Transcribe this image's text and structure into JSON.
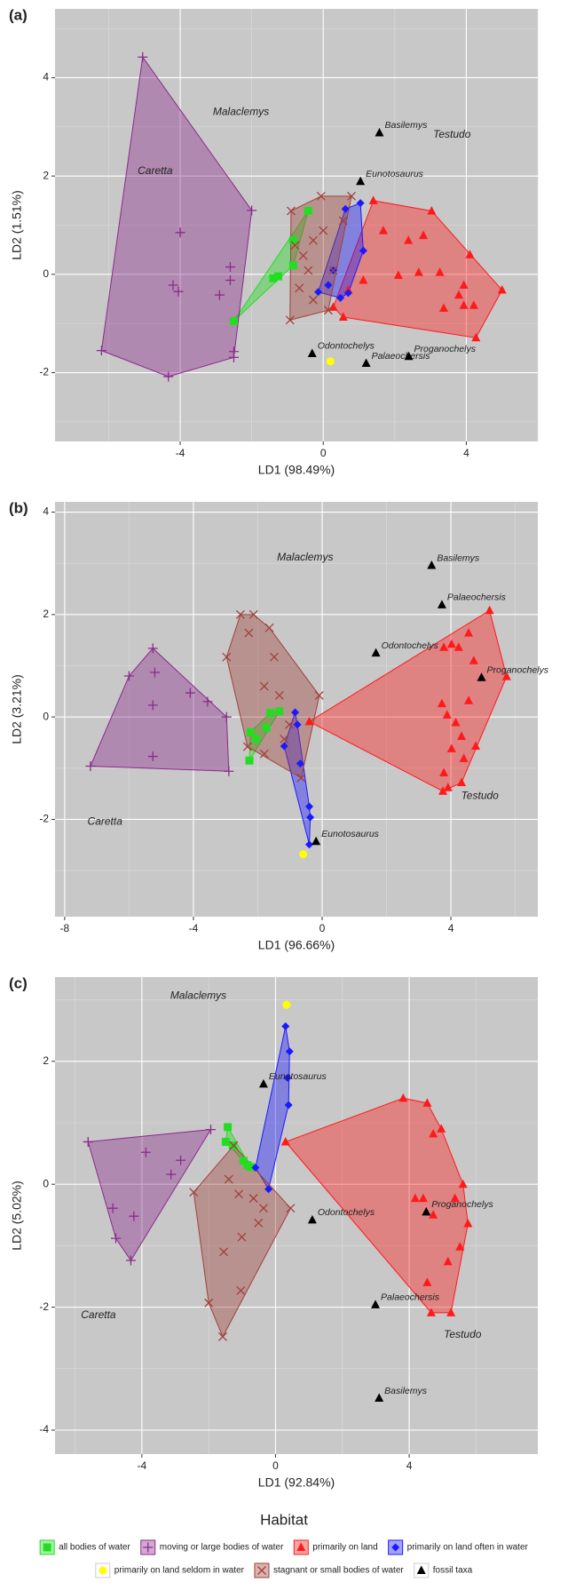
{
  "chart_data": [
    {
      "type": "scatter",
      "label": "(a)",
      "xlabel": "LD1 (98.49%)",
      "ylabel": "LD2 (1.51%)",
      "xlim": [
        -7.5,
        6.0
      ],
      "ylim": [
        -3.4,
        5.4
      ],
      "xticks": [
        -4,
        0,
        4
      ],
      "yticks": [
        -2,
        0,
        2,
        4
      ],
      "grid": true,
      "series": [
        {
          "name": "all bodies of water",
          "color": "#22dd22",
          "marker": "square",
          "hull": true,
          "x": [
            -2.5,
            -1.4,
            -0.84,
            -0.42,
            -0.84,
            -1.26
          ],
          "y": [
            -0.95,
            -0.08,
            0.69,
            1.29,
            0.18,
            -0.04
          ]
        },
        {
          "name": "moving or large bodies of water",
          "color": "#8b2a8b",
          "marker": "plus",
          "hull": true,
          "x": [
            -5.05,
            -2.0,
            -6.2,
            -4.33,
            -2.5,
            -2.5,
            -2.6,
            -2.6,
            -2.9,
            -4.0,
            -4.2,
            -4.05
          ],
          "y": [
            4.42,
            1.3,
            -1.55,
            -2.08,
            -1.57,
            -1.69,
            0.15,
            -0.12,
            -0.42,
            0.85,
            -0.22,
            -0.35
          ]
        },
        {
          "name": "primarily on land",
          "color": "#ff1a1a",
          "marker": "triangle",
          "hull": true,
          "x": [
            1.4,
            3.03,
            5.0,
            4.27,
            0.56,
            0.28,
            1.68,
            2.38,
            2.67,
            3.26,
            3.93,
            3.79,
            3.93,
            4.21,
            3.37,
            1.12,
            2.1,
            2.8,
            4.1,
            0.7
          ],
          "y": [
            1.5,
            1.29,
            -0.32,
            -1.29,
            -0.87,
            -0.67,
            0.89,
            0.69,
            0.04,
            0.04,
            -0.22,
            -0.42,
            -0.63,
            -0.63,
            -0.69,
            -0.12,
            -0.02,
            0.79,
            0.4,
            -0.32
          ]
        },
        {
          "name": "primarily on land often in water",
          "color": "#1a1aff",
          "marker": "diamond",
          "hull": true,
          "x": [
            -0.14,
            0.62,
            1.04,
            1.12,
            0.48,
            0.7,
            0.28,
            0.14
          ],
          "y": [
            -0.36,
            1.33,
            1.45,
            0.48,
            -0.48,
            -0.38,
            0.08,
            -0.22
          ]
        },
        {
          "name": "primarily on land seldom in water",
          "color": "#ffff00",
          "marker": "circle",
          "hull": false,
          "x": [
            0.2
          ],
          "y": [
            -1.77
          ]
        },
        {
          "name": "stagnant or small bodies of water",
          "color": "#a0403a",
          "marker": "x",
          "hull": true,
          "x": [
            -0.06,
            -0.9,
            0.79,
            -0.93,
            -0.67,
            -0.56,
            -0.28,
            0.0,
            0.28,
            -0.28,
            0.56,
            0.14,
            -0.42,
            -0.79
          ],
          "y": [
            1.59,
            1.29,
            1.59,
            -0.93,
            -0.28,
            0.38,
            0.69,
            0.89,
            0.08,
            -0.52,
            1.09,
            -0.73,
            0.08,
            0.59
          ]
        },
        {
          "name": "fossil taxa",
          "color": "#000000",
          "marker": "triangle",
          "hull": false,
          "x": [
            1.57,
            1.04,
            -0.31,
            1.2,
            2.39
          ],
          "y": [
            2.88,
            1.89,
            -1.61,
            -1.81,
            -1.67
          ],
          "labels": [
            "Basilemys",
            "Eunotosaurus",
            "Odontochelys",
            "Palaeochersis",
            "Proganochelys"
          ]
        }
      ],
      "annotations": [
        {
          "text": "Malaclemys",
          "x": -2.3,
          "y": 3.3
        },
        {
          "text": "Caretta",
          "x": -4.7,
          "y": 2.1
        },
        {
          "text": "Testudo",
          "x": 3.6,
          "y": 2.84
        }
      ]
    },
    {
      "type": "scatter",
      "label": "(b)",
      "xlabel": "LD1 (96.66%)",
      "ylabel": "LD2 (3.21%)",
      "xlim": [
        -8.3,
        6.7
      ],
      "ylim": [
        -3.9,
        4.2
      ],
      "xticks": [
        -8,
        -4,
        0,
        4
      ],
      "yticks": [
        -2,
        0,
        2,
        4
      ],
      "grid": true,
      "series": [
        {
          "name": "all bodies of water",
          "color": "#22dd22",
          "marker": "square",
          "hull": true,
          "x": [
            -2.23,
            -2.26,
            -1.73,
            -1.33,
            -1.61,
            -2.05
          ],
          "y": [
            -0.3,
            -0.85,
            -0.21,
            0.11,
            0.08,
            -0.43
          ]
        },
        {
          "name": "moving or large bodies of water",
          "color": "#8b2a8b",
          "marker": "plus",
          "hull": true,
          "x": [
            -7.2,
            -5.26,
            -3.56,
            -2.97,
            -5.2,
            -6.0,
            -4.1,
            -5.26,
            -5.26,
            -2.9
          ],
          "y": [
            -0.96,
            1.34,
            0.3,
            0.0,
            0.87,
            0.8,
            0.47,
            0.23,
            -0.77,
            -1.06
          ]
        },
        {
          "name": "primarily on land",
          "color": "#ff1a1a",
          "marker": "triangle",
          "hull": true,
          "x": [
            5.2,
            5.73,
            3.75,
            -0.4,
            3.78,
            4.02,
            4.24,
            4.55,
            4.71,
            3.72,
            3.88,
            4.15,
            4.33,
            4.02,
            4.4,
            4.77,
            3.78,
            4.55,
            3.91,
            4.33
          ],
          "y": [
            2.08,
            0.79,
            -1.45,
            -0.09,
            1.36,
            1.42,
            1.36,
            1.64,
            1.1,
            0.26,
            0.04,
            -0.11,
            -0.38,
            -0.62,
            -0.81,
            -0.57,
            -1.09,
            0.32,
            -1.38,
            -1.28
          ]
        },
        {
          "name": "primarily on land often in water",
          "color": "#1a1aff",
          "marker": "diamond",
          "hull": true,
          "x": [
            -0.84,
            -1.18,
            -0.4,
            -0.37,
            -0.4,
            -0.68,
            -0.77
          ],
          "y": [
            0.09,
            -0.57,
            -2.49,
            -1.96,
            -1.75,
            -0.91,
            -0.15
          ]
        },
        {
          "name": "primarily on land seldom in water",
          "color": "#ffff00",
          "marker": "circle",
          "hull": false,
          "x": [
            -0.59
          ],
          "y": [
            -2.68
          ]
        },
        {
          "name": "stagnant or small bodies of water",
          "color": "#a0403a",
          "marker": "x",
          "hull": true,
          "x": [
            -2.54,
            -2.13,
            -2.97,
            -2.32,
            -0.09,
            -0.65,
            -1.64,
            -1.49,
            -1.8,
            -2.28,
            -1.33,
            -1.02,
            -1.8,
            -1.18
          ],
          "y": [
            2.0,
            2.0,
            1.17,
            -0.58,
            0.42,
            -1.19,
            1.74,
            1.17,
            0.6,
            1.64,
            0.42,
            -0.15,
            -0.72,
            -0.43
          ]
        },
        {
          "name": "fossil taxa",
          "color": "#000000",
          "marker": "triangle",
          "hull": false,
          "x": [
            3.4,
            3.72,
            1.67,
            4.95,
            -0.19
          ],
          "y": [
            2.96,
            2.19,
            1.25,
            0.77,
            -2.43
          ],
          "labels": [
            "Basilemys",
            "Palaeochersis",
            "Odontochelys",
            "Proganochelys",
            "Eunotosaurus"
          ]
        }
      ],
      "annotations": [
        {
          "text": "Malaclemys",
          "x": -0.53,
          "y": 3.11
        },
        {
          "text": "Caretta",
          "x": -6.75,
          "y": -2.05
        },
        {
          "text": "Testudo",
          "x": 4.9,
          "y": -1.55
        }
      ]
    },
    {
      "type": "scatter",
      "label": "(c)",
      "xlabel": "LD1 (92.84%)",
      "ylabel": "LD2 (5.02%)",
      "xlim": [
        -6.6,
        7.85
      ],
      "ylim": [
        -4.39,
        3.37
      ],
      "xticks": [
        -4,
        0,
        4
      ],
      "yticks": [
        -4,
        -2,
        0,
        2
      ],
      "grid": true,
      "series": [
        {
          "name": "all bodies of water",
          "color": "#22dd22",
          "marker": "square",
          "hull": true,
          "x": [
            -1.43,
            -1.49,
            -1.28,
            -0.84,
            -0.75,
            -0.96
          ],
          "y": [
            0.93,
            0.69,
            0.63,
            0.31,
            0.28,
            0.38
          ]
        },
        {
          "name": "moving or large bodies of water",
          "color": "#8b2a8b",
          "marker": "plus",
          "hull": true,
          "x": [
            -5.61,
            -1.94,
            -4.33,
            -4.78,
            -4.87,
            -3.88,
            -4.24,
            -3.13,
            -2.84
          ],
          "y": [
            0.69,
            0.89,
            -1.24,
            -0.88,
            -0.39,
            0.52,
            -0.52,
            0.16,
            0.39
          ]
        },
        {
          "name": "primarily on land",
          "color": "#ff1a1a",
          "marker": "triangle",
          "hull": true,
          "x": [
            0.3,
            3.82,
            4.54,
            4.96,
            5.76,
            5.25,
            4.66,
            4.54,
            4.18,
            4.72,
            4.42,
            5.37,
            5.61,
            4.72,
            5.52,
            5.16
          ],
          "y": [
            0.69,
            1.4,
            1.32,
            0.9,
            -0.64,
            -2.09,
            -2.09,
            -1.6,
            -0.23,
            0.82,
            -0.23,
            -0.23,
            0.0,
            -0.5,
            -1.02,
            -1.26
          ]
        },
        {
          "name": "primarily on land often in water",
          "color": "#1a1aff",
          "marker": "diamond",
          "hull": true,
          "x": [
            -0.6,
            -0.21,
            0.3,
            0.39,
            0.42,
            0.36
          ],
          "y": [
            0.27,
            -0.08,
            2.57,
            1.29,
            2.16,
            1.73
          ]
        },
        {
          "name": "primarily on land seldom in water",
          "color": "#ffff00",
          "marker": "circle",
          "hull": false,
          "x": [
            0.33
          ],
          "y": [
            2.92
          ]
        },
        {
          "name": "stagnant or small bodies of water",
          "color": "#a0403a",
          "marker": "x",
          "hull": true,
          "x": [
            -1.58,
            -2.45,
            -2.0,
            -1.25,
            0.45,
            -1.04,
            -1.4,
            -1.1,
            -0.66,
            -0.36,
            -1.01,
            -0.51,
            -1.55
          ],
          "y": [
            -2.48,
            -0.13,
            -1.93,
            0.63,
            -0.39,
            -1.73,
            0.08,
            -0.16,
            -0.23,
            -0.39,
            -0.86,
            -0.63,
            -1.1
          ]
        },
        {
          "name": "fossil taxa",
          "color": "#000000",
          "marker": "triangle",
          "hull": false,
          "x": [
            -0.36,
            1.1,
            4.51,
            2.99,
            3.1
          ],
          "y": [
            1.63,
            -0.58,
            -0.45,
            -1.96,
            -3.48
          ],
          "labels": [
            "Eunotosaurus",
            "Odontochelys",
            "Proganochelys",
            "Palaeochersis",
            "Basilemys"
          ]
        }
      ],
      "annotations": [
        {
          "text": "Malaclemys",
          "x": -2.31,
          "y": 3.06
        },
        {
          "text": "Caretta",
          "x": -5.3,
          "y": -2.13
        },
        {
          "text": "Testudo",
          "x": 5.6,
          "y": -2.45
        }
      ]
    }
  ],
  "legend": {
    "title": "Habitat"
  }
}
